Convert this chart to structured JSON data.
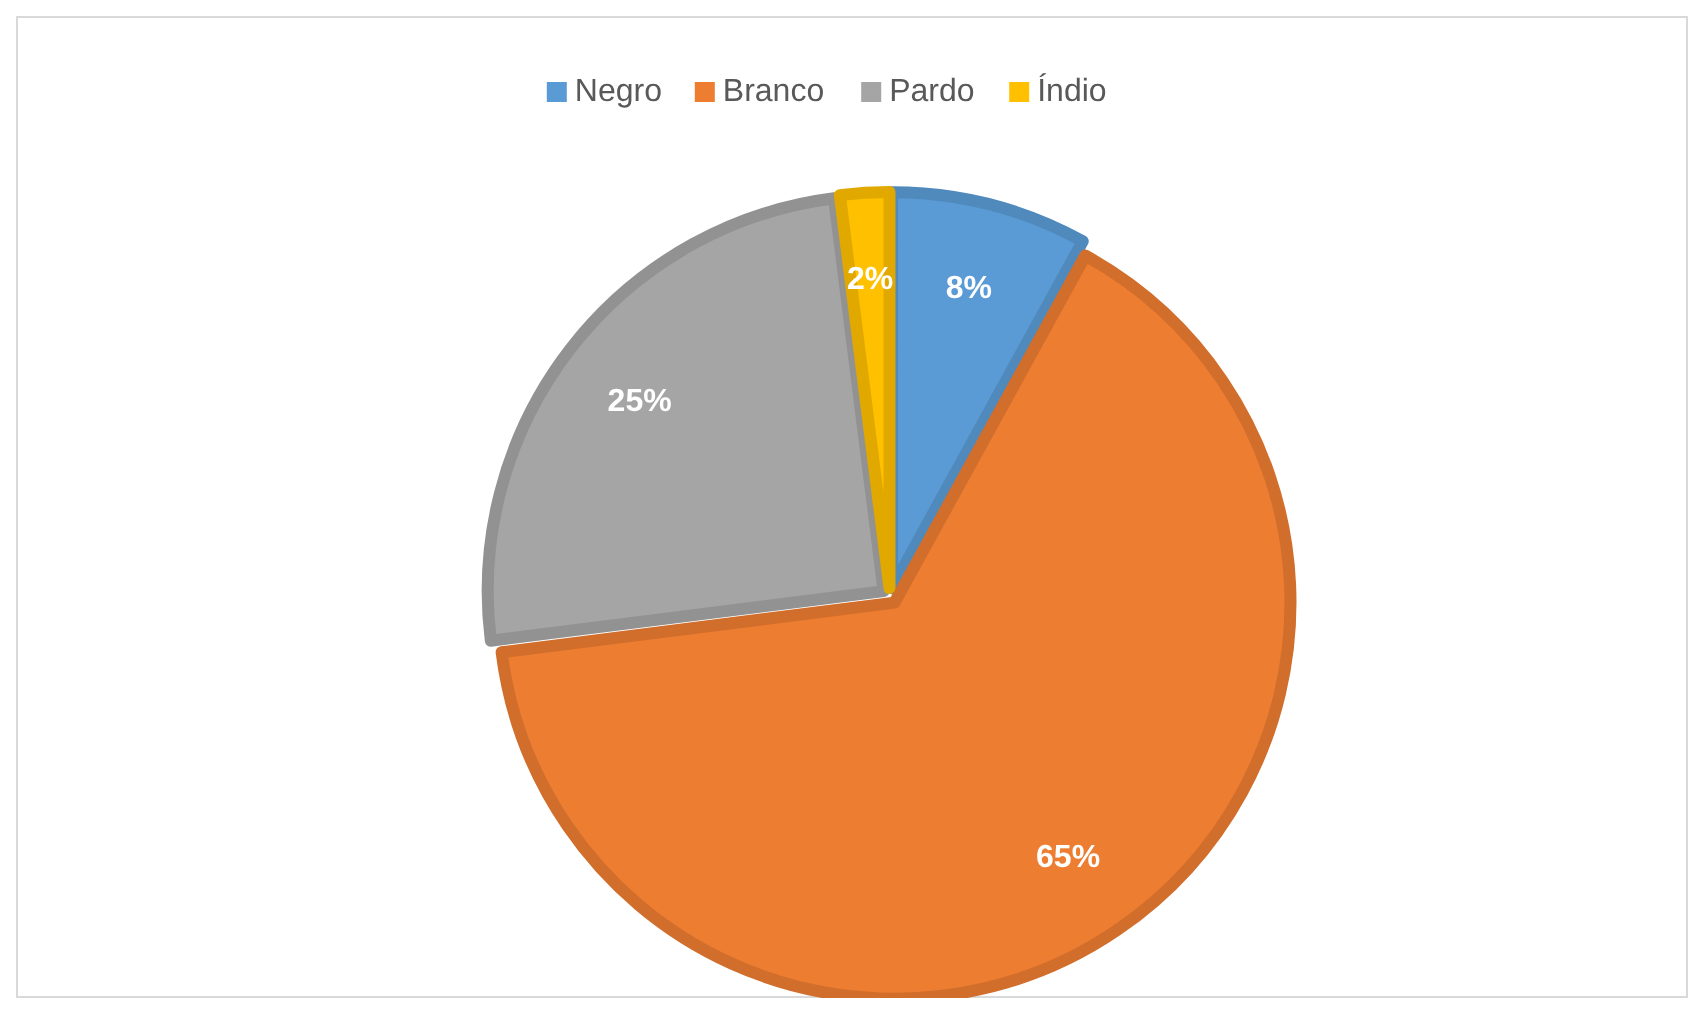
{
  "chart_data": {
    "type": "pie",
    "categories": [
      "Negro",
      "Branco",
      "Pardo",
      "Índio"
    ],
    "values": [
      8,
      65,
      25,
      2
    ],
    "colors": [
      "#5b9bd5",
      "#ed7d31",
      "#a5a5a5",
      "#ffc000"
    ],
    "value_labels": [
      "8%",
      "65%",
      "25%",
      "2%"
    ],
    "legend": "top"
  }
}
